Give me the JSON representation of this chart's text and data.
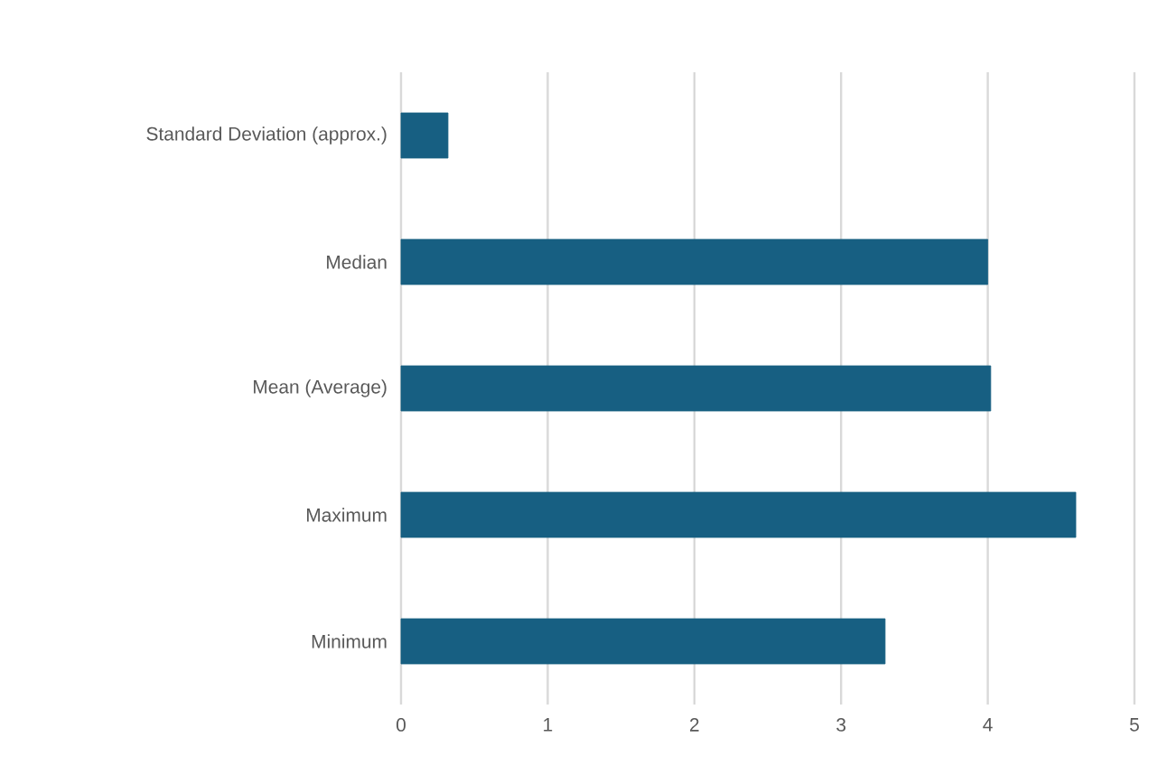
{
  "chart_data": {
    "type": "bar",
    "orientation": "horizontal",
    "categories": [
      "Standard Deviation (approx.)",
      "Median",
      "Mean (Average)",
      "Maximum",
      "Minimum"
    ],
    "values": [
      0.32,
      4.0,
      4.02,
      4.6,
      3.3
    ],
    "color": "#175f82",
    "xlim": [
      0,
      5
    ],
    "xticks": [
      0,
      1,
      2,
      3,
      4,
      5
    ],
    "grid": "x"
  }
}
